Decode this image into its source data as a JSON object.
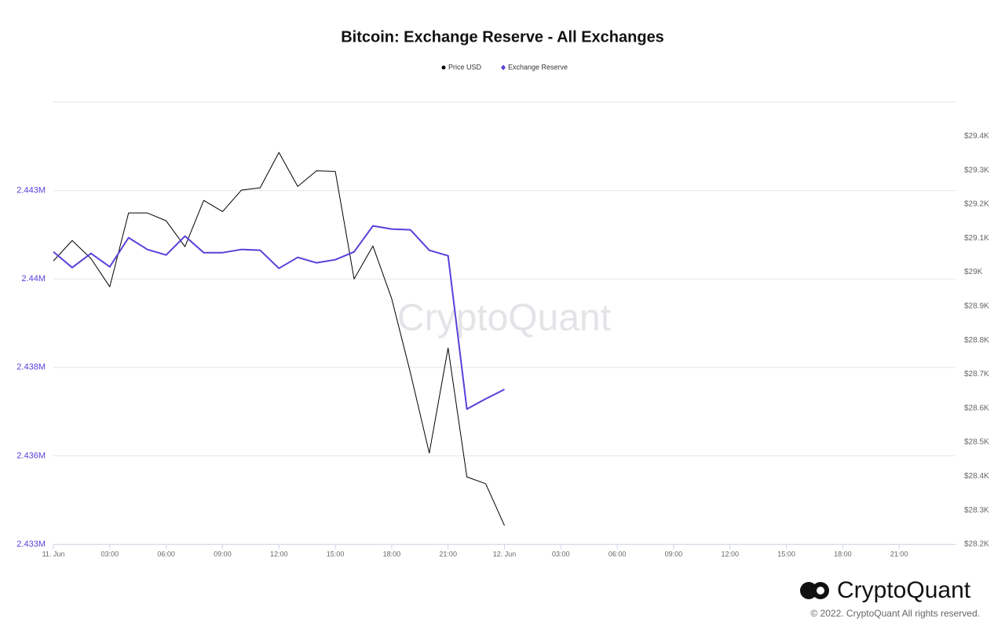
{
  "chart_data": {
    "type": "line",
    "title": "Bitcoin: Exchange Reserve - All Exchanges",
    "watermark": "CryptoQuant",
    "brand": "CryptoQuant",
    "copyright": "© 2022. CryptoQuant All rights reserved.",
    "x": [
      0,
      1,
      2,
      3,
      4,
      5,
      6,
      7,
      8,
      9,
      10,
      11,
      12,
      13,
      14,
      15,
      16,
      17,
      18,
      19,
      20,
      21,
      22,
      23,
      24
    ],
    "xlim": [
      0,
      48
    ],
    "xticks": [
      {
        "value": 0,
        "label": "11. Jun"
      },
      {
        "value": 3,
        "label": "03:00"
      },
      {
        "value": 6,
        "label": "06:00"
      },
      {
        "value": 9,
        "label": "09:00"
      },
      {
        "value": 12,
        "label": "12:00"
      },
      {
        "value": 15,
        "label": "15:00"
      },
      {
        "value": 18,
        "label": "18:00"
      },
      {
        "value": 21,
        "label": "21:00"
      },
      {
        "value": 24,
        "label": "12. Jun"
      },
      {
        "value": 27,
        "label": "03:00"
      },
      {
        "value": 30,
        "label": "06:00"
      },
      {
        "value": 33,
        "label": "09:00"
      },
      {
        "value": 36,
        "label": "12:00"
      },
      {
        "value": 39,
        "label": "15:00"
      },
      {
        "value": 42,
        "label": "18:00"
      },
      {
        "value": 45,
        "label": "21:00"
      }
    ],
    "ylim": [
      2433000,
      2445500
    ],
    "yticks": [
      {
        "value": 2433000,
        "label": "2.433M"
      },
      {
        "value": 2435500,
        "label": "2.436M"
      },
      {
        "value": 2438000,
        "label": "2.438M"
      },
      {
        "value": 2440500,
        "label": "2.44M"
      },
      {
        "value": 2443000,
        "label": "2.443M"
      }
    ],
    "y2lim": [
      28200,
      29500
    ],
    "y2ticks": [
      {
        "value": 28200,
        "label": "$28.2K"
      },
      {
        "value": 28300,
        "label": "$28.3K"
      },
      {
        "value": 28400,
        "label": "$28.4K"
      },
      {
        "value": 28500,
        "label": "$28.5K"
      },
      {
        "value": 28600,
        "label": "$28.6K"
      },
      {
        "value": 28700,
        "label": "$28.7K"
      },
      {
        "value": 28800,
        "label": "$28.8K"
      },
      {
        "value": 28900,
        "label": "$28.9K"
      },
      {
        "value": 29000,
        "label": "$29K"
      },
      {
        "value": 29100,
        "label": "$29.1K"
      },
      {
        "value": 29200,
        "label": "$29.2K"
      },
      {
        "value": 29300,
        "label": "$29.3K"
      },
      {
        "value": 29400,
        "label": "$29.4K"
      }
    ],
    "grid": true,
    "series": [
      {
        "name": "Price USD",
        "color": "#000000",
        "axis": "y2",
        "values": [
          29033,
          29093,
          29040,
          28957,
          29174,
          29174,
          29151,
          29075,
          29211,
          29178,
          29241,
          29248,
          29352,
          29252,
          29298,
          29296,
          28980,
          29077,
          28922,
          28703,
          28468,
          28777,
          28398,
          28378,
          28255
        ]
      },
      {
        "name": "Exchange Reserve",
        "color": "#5b3fd9",
        "values": [
          2441267,
          2440822,
          2441222,
          2440844,
          2441667,
          2441333,
          2441178,
          2441711,
          2441244,
          2441244,
          2441333,
          2441311,
          2440800,
          2441111,
          2440956,
          2441044,
          2441267,
          2442000,
          2441911,
          2441889,
          2441311,
          2441156,
          2436822,
          2437111,
          2437378
        ]
      }
    ]
  }
}
